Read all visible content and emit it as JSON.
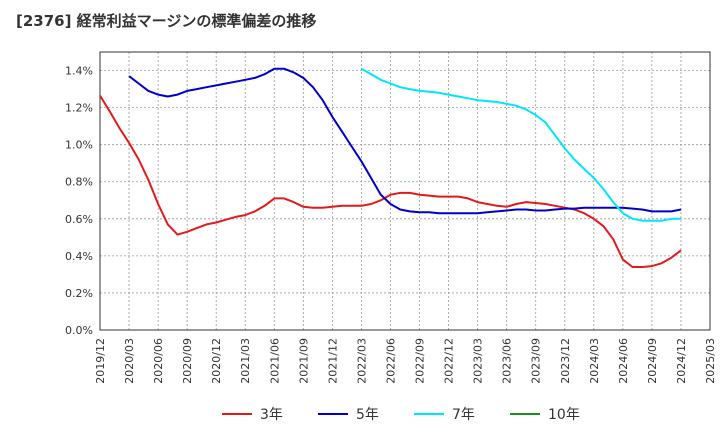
{
  "chart_data": {
    "type": "line",
    "title": "[2376]  経常利益マージンの標準偏差の推移",
    "xlabel": "",
    "ylabel": "",
    "ylim": [
      0,
      0.015
    ],
    "y_ticks": [
      0.0,
      0.002,
      0.004,
      0.006,
      0.008,
      0.01,
      0.012,
      0.014
    ],
    "y_tick_labels": [
      "0.0%",
      "0.2%",
      "0.4%",
      "0.6%",
      "0.8%",
      "1.0%",
      "1.2%",
      "1.4%"
    ],
    "x_tick_labels": [
      "2019/12",
      "2020/03",
      "2020/06",
      "2020/09",
      "2020/12",
      "2021/03",
      "2021/06",
      "2021/09",
      "2021/12",
      "2022/03",
      "2022/06",
      "2022/09",
      "2022/12",
      "2023/03",
      "2023/06",
      "2023/09",
      "2023/12",
      "2024/03",
      "2024/06",
      "2024/09",
      "2024/12",
      "2025/03"
    ],
    "grid": true,
    "legend_position": "bottom",
    "series": [
      {
        "name": "3年",
        "color": "#e31a1c",
        "points": [
          [
            "2019/12",
            0.01265
          ],
          [
            "2020/01",
            0.0118
          ],
          [
            "2020/02",
            0.0109
          ],
          [
            "2020/03",
            0.0101
          ],
          [
            "2020/04",
            0.0092
          ],
          [
            "2020/05",
            0.0081
          ],
          [
            "2020/06",
            0.0068
          ],
          [
            "2020/07",
            0.0057
          ],
          [
            "2020/08",
            0.00515
          ],
          [
            "2020/09",
            0.0053
          ],
          [
            "2020/10",
            0.0055
          ],
          [
            "2020/11",
            0.0057
          ],
          [
            "2020/12",
            0.0058
          ],
          [
            "2021/01",
            0.00595
          ],
          [
            "2021/02",
            0.0061
          ],
          [
            "2021/03",
            0.0062
          ],
          [
            "2021/04",
            0.0064
          ],
          [
            "2021/05",
            0.0067
          ],
          [
            "2021/06",
            0.0071
          ],
          [
            "2021/07",
            0.0071
          ],
          [
            "2021/08",
            0.0069
          ],
          [
            "2021/09",
            0.00665
          ],
          [
            "2021/10",
            0.0066
          ],
          [
            "2021/11",
            0.0066
          ],
          [
            "2021/12",
            0.00665
          ],
          [
            "2022/01",
            0.0067
          ],
          [
            "2022/02",
            0.0067
          ],
          [
            "2022/03",
            0.0067
          ],
          [
            "2022/04",
            0.0068
          ],
          [
            "2022/05",
            0.007
          ],
          [
            "2022/06",
            0.0073
          ],
          [
            "2022/07",
            0.0074
          ],
          [
            "2022/08",
            0.0074
          ],
          [
            "2022/09",
            0.0073
          ],
          [
            "2022/10",
            0.00725
          ],
          [
            "2022/11",
            0.0072
          ],
          [
            "2022/12",
            0.0072
          ],
          [
            "2023/01",
            0.0072
          ],
          [
            "2023/02",
            0.0071
          ],
          [
            "2023/03",
            0.0069
          ],
          [
            "2023/04",
            0.0068
          ],
          [
            "2023/05",
            0.0067
          ],
          [
            "2023/06",
            0.00665
          ],
          [
            "2023/07",
            0.0068
          ],
          [
            "2023/08",
            0.0069
          ],
          [
            "2023/09",
            0.00685
          ],
          [
            "2023/10",
            0.0068
          ],
          [
            "2023/11",
            0.0067
          ],
          [
            "2023/12",
            0.0066
          ],
          [
            "2024/01",
            0.0065
          ],
          [
            "2024/02",
            0.0063
          ],
          [
            "2024/03",
            0.006
          ],
          [
            "2024/04",
            0.0056
          ],
          [
            "2024/05",
            0.0049
          ],
          [
            "2024/06",
            0.0038
          ],
          [
            "2024/07",
            0.0034
          ],
          [
            "2024/08",
            0.0034
          ],
          [
            "2024/09",
            0.00345
          ],
          [
            "2024/10",
            0.0036
          ],
          [
            "2024/11",
            0.0039
          ],
          [
            "2024/12",
            0.0043
          ]
        ]
      },
      {
        "name": "5年",
        "color": "#0000cc",
        "points": [
          [
            "2020/03",
            0.0137
          ],
          [
            "2020/04",
            0.0133
          ],
          [
            "2020/05",
            0.0129
          ],
          [
            "2020/06",
            0.0127
          ],
          [
            "2020/07",
            0.0126
          ],
          [
            "2020/08",
            0.0127
          ],
          [
            "2020/09",
            0.0129
          ],
          [
            "2020/10",
            0.013
          ],
          [
            "2020/11",
            0.0131
          ],
          [
            "2020/12",
            0.0132
          ],
          [
            "2021/01",
            0.0133
          ],
          [
            "2021/02",
            0.0134
          ],
          [
            "2021/03",
            0.0135
          ],
          [
            "2021/04",
            0.0136
          ],
          [
            "2021/05",
            0.0138
          ],
          [
            "2021/06",
            0.0141
          ],
          [
            "2021/07",
            0.0141
          ],
          [
            "2021/08",
            0.0139
          ],
          [
            "2021/09",
            0.0136
          ],
          [
            "2021/10",
            0.0131
          ],
          [
            "2021/11",
            0.0124
          ],
          [
            "2021/12",
            0.0115
          ],
          [
            "2022/01",
            0.0107
          ],
          [
            "2022/02",
            0.0099
          ],
          [
            "2022/03",
            0.0091
          ],
          [
            "2022/04",
            0.0082
          ],
          [
            "2022/05",
            0.0073
          ],
          [
            "2022/06",
            0.0068
          ],
          [
            "2022/07",
            0.0065
          ],
          [
            "2022/08",
            0.0064
          ],
          [
            "2022/09",
            0.00635
          ],
          [
            "2022/10",
            0.00635
          ],
          [
            "2022/11",
            0.0063
          ],
          [
            "2022/12",
            0.0063
          ],
          [
            "2023/01",
            0.0063
          ],
          [
            "2023/02",
            0.0063
          ],
          [
            "2023/03",
            0.0063
          ],
          [
            "2023/04",
            0.00635
          ],
          [
            "2023/05",
            0.0064
          ],
          [
            "2023/06",
            0.00645
          ],
          [
            "2023/07",
            0.0065
          ],
          [
            "2023/08",
            0.0065
          ],
          [
            "2023/09",
            0.00645
          ],
          [
            "2023/10",
            0.00645
          ],
          [
            "2023/11",
            0.0065
          ],
          [
            "2023/12",
            0.00655
          ],
          [
            "2024/01",
            0.00655
          ],
          [
            "2024/02",
            0.0066
          ],
          [
            "2024/03",
            0.0066
          ],
          [
            "2024/04",
            0.0066
          ],
          [
            "2024/05",
            0.0066
          ],
          [
            "2024/06",
            0.0066
          ],
          [
            "2024/07",
            0.00655
          ],
          [
            "2024/08",
            0.0065
          ],
          [
            "2024/09",
            0.0064
          ],
          [
            "2024/10",
            0.0064
          ],
          [
            "2024/11",
            0.0064
          ],
          [
            "2024/12",
            0.0065
          ]
        ]
      },
      {
        "name": "7年",
        "color": "#00e5ff",
        "points": [
          [
            "2022/03",
            0.0141
          ],
          [
            "2022/04",
            0.0138
          ],
          [
            "2022/05",
            0.0135
          ],
          [
            "2022/06",
            0.0133
          ],
          [
            "2022/07",
            0.0131
          ],
          [
            "2022/08",
            0.013
          ],
          [
            "2022/09",
            0.0129
          ],
          [
            "2022/10",
            0.01285
          ],
          [
            "2022/11",
            0.0128
          ],
          [
            "2022/12",
            0.0127
          ],
          [
            "2023/01",
            0.0126
          ],
          [
            "2023/02",
            0.0125
          ],
          [
            "2023/03",
            0.0124
          ],
          [
            "2023/04",
            0.01235
          ],
          [
            "2023/05",
            0.0123
          ],
          [
            "2023/06",
            0.0122
          ],
          [
            "2023/07",
            0.0121
          ],
          [
            "2023/08",
            0.0119
          ],
          [
            "2023/09",
            0.0116
          ],
          [
            "2023/10",
            0.0112
          ],
          [
            "2023/11",
            0.0105
          ],
          [
            "2023/12",
            0.0098
          ],
          [
            "2024/01",
            0.0092
          ],
          [
            "2024/02",
            0.0087
          ],
          [
            "2024/03",
            0.0082
          ],
          [
            "2024/04",
            0.0076
          ],
          [
            "2024/05",
            0.0069
          ],
          [
            "2024/06",
            0.0063
          ],
          [
            "2024/07",
            0.006
          ],
          [
            "2024/08",
            0.0059
          ],
          [
            "2024/09",
            0.0059
          ],
          [
            "2024/10",
            0.0059
          ],
          [
            "2024/11",
            0.006
          ],
          [
            "2024/12",
            0.006
          ]
        ]
      },
      {
        "name": "10年",
        "color": "#228b22",
        "points": []
      }
    ]
  }
}
